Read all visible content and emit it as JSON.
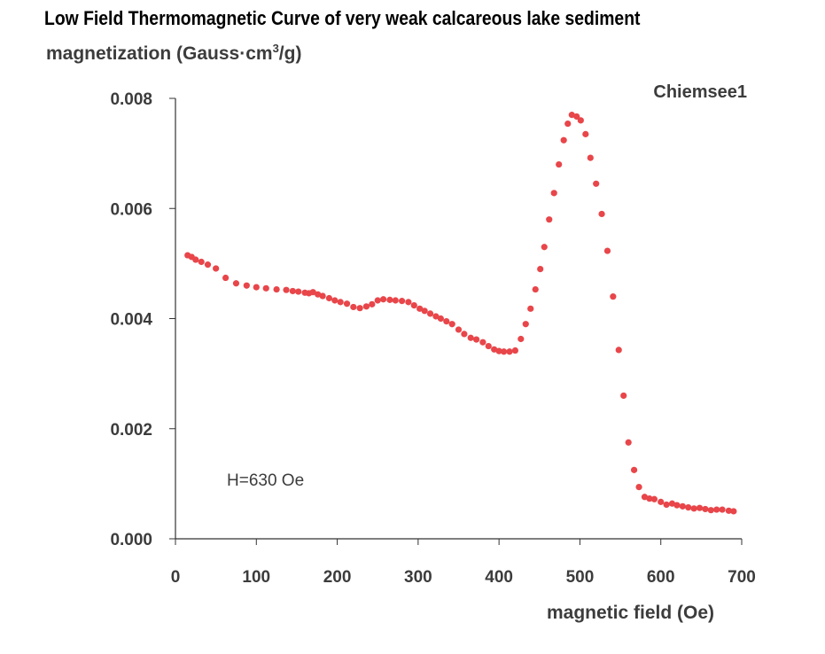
{
  "chart_data": {
    "type": "scatter",
    "title": "Low Field  Thermomagnetic Curve of very weak calcareous lake sediment",
    "ylabel": {
      "prefix": "magnetization (Gauss·cm",
      "sup": "3",
      "suffix": "/g)"
    },
    "xlabel": "magnetic field (Oe)",
    "series_label": "Chiemsee1",
    "annotation": "H=630 Oe",
    "xlim": [
      0,
      700
    ],
    "ylim": [
      0,
      0.008
    ],
    "x_ticks": [
      "0",
      "100",
      "200",
      "300",
      "400",
      "500",
      "600",
      "700"
    ],
    "y_ticks": [
      "0.000",
      "0.002",
      "0.004",
      "0.006",
      "0.008"
    ],
    "grid": false,
    "colors": {
      "points": "#e8464a",
      "axis": "#333333"
    },
    "series": [
      {
        "x": [
          15,
          20,
          25,
          32,
          40,
          50,
          62,
          75,
          88,
          100,
          112,
          125,
          137,
          145,
          152,
          160,
          165,
          170,
          176,
          182,
          190,
          197,
          204,
          212,
          220,
          228,
          236,
          243,
          250,
          257,
          265,
          272,
          280,
          288,
          295,
          302,
          308,
          315,
          322,
          328,
          335,
          342,
          350,
          357,
          365,
          372,
          380,
          387,
          394,
          400,
          406,
          413,
          420,
          427,
          433,
          439,
          445,
          451,
          456,
          462,
          468,
          474,
          480,
          485,
          490,
          496,
          501,
          507,
          513,
          520,
          527,
          534,
          541,
          548,
          554,
          560,
          567,
          573,
          580,
          586,
          592,
          600,
          607,
          614,
          620,
          627,
          634,
          641,
          648,
          655,
          662,
          669,
          676,
          684,
          690
        ],
        "y": [
          0.00515,
          0.00512,
          0.00507,
          0.00503,
          0.00498,
          0.00491,
          0.00474,
          0.00464,
          0.0046,
          0.00457,
          0.00455,
          0.00453,
          0.00452,
          0.0045,
          0.00449,
          0.00447,
          0.00446,
          0.00448,
          0.00444,
          0.00441,
          0.00437,
          0.00433,
          0.0043,
          0.00427,
          0.00421,
          0.00419,
          0.00422,
          0.00426,
          0.00433,
          0.00435,
          0.00434,
          0.00433,
          0.00432,
          0.0043,
          0.00424,
          0.00418,
          0.00414,
          0.00409,
          0.00404,
          0.004,
          0.00395,
          0.0039,
          0.0038,
          0.00372,
          0.00365,
          0.00362,
          0.00357,
          0.0035,
          0.00344,
          0.00341,
          0.0034,
          0.0034,
          0.00342,
          0.00363,
          0.0039,
          0.00418,
          0.00453,
          0.0049,
          0.0053,
          0.0058,
          0.00628,
          0.0068,
          0.00724,
          0.00754,
          0.0077,
          0.00767,
          0.0076,
          0.00735,
          0.00692,
          0.00645,
          0.0059,
          0.00523,
          0.0044,
          0.00343,
          0.0026,
          0.00175,
          0.00125,
          0.00094,
          0.00076,
          0.00073,
          0.00072,
          0.00067,
          0.00062,
          0.00064,
          0.00061,
          0.00059,
          0.00057,
          0.00055,
          0.00056,
          0.00054,
          0.00052,
          0.00053,
          0.00053,
          0.00051,
          0.0005
        ]
      }
    ]
  }
}
